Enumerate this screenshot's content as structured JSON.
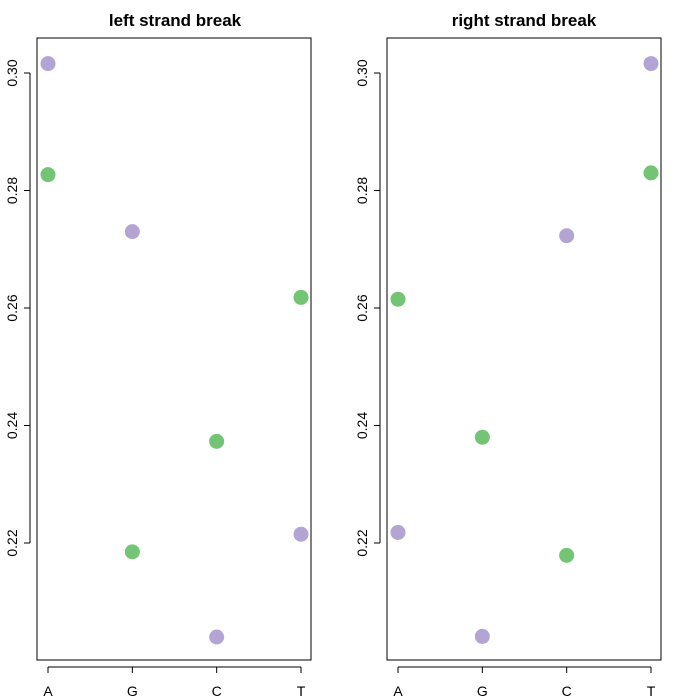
{
  "chart_data": [
    {
      "type": "scatter",
      "title": "left strand break",
      "xlabel": "",
      "ylabel": "",
      "categories": [
        "A",
        "G",
        "C",
        "T"
      ],
      "yticks": [
        0.22,
        0.24,
        0.26,
        0.28,
        0.3
      ],
      "ylim": [
        0.2,
        0.305
      ],
      "grid": false,
      "series": [
        {
          "color": "#74c476",
          "values": [
            0.2827,
            0.2185,
            0.2373,
            0.2618
          ]
        },
        {
          "color": "#b4a4d4",
          "values": [
            0.3016,
            0.273,
            0.204,
            0.2215
          ]
        }
      ]
    },
    {
      "type": "scatter",
      "title": "right strand break",
      "xlabel": "",
      "ylabel": "",
      "categories": [
        "A",
        "G",
        "C",
        "T"
      ],
      "yticks": [
        0.22,
        0.24,
        0.26,
        0.28,
        0.3
      ],
      "ylim": [
        0.2,
        0.305
      ],
      "grid": false,
      "series": [
        {
          "color": "#74c476",
          "values": [
            0.2615,
            0.238,
            0.2179,
            0.283
          ]
        },
        {
          "color": "#b4a4d4",
          "values": [
            0.2218,
            0.2041,
            0.2723,
            0.3016
          ]
        }
      ]
    }
  ]
}
